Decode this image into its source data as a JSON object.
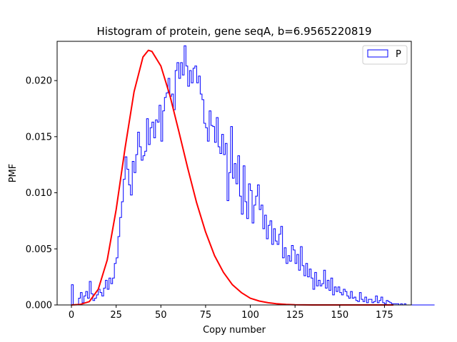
{
  "chart_data": {
    "type": "histogram",
    "title": "Histogram of protein, gene seqA, b=6.9565220819",
    "xlabel": "Copy number",
    "ylabel": "PMF",
    "xlim": [
      -8,
      190
    ],
    "ylim": [
      0,
      0.0235
    ],
    "xticks": [
      0,
      25,
      50,
      75,
      100,
      125,
      150,
      175
    ],
    "yticks": [
      0.0,
      0.005,
      0.01,
      0.015,
      0.02
    ],
    "ytick_labels": [
      "0.000",
      "0.005",
      "0.010",
      "0.015",
      "0.020"
    ],
    "grid": false,
    "legend": {
      "position": "top-right",
      "entries": [
        "P"
      ]
    },
    "histogram": {
      "name": "P",
      "color": "#0000ff",
      "bin_edges_start": 0,
      "bin_width": 1,
      "values": [
        0.0018,
        0,
        0,
        0,
        0.0006,
        0.0011,
        0.0002,
        0.0008,
        0.0012,
        0.0006,
        0.0021,
        0.001,
        0.0004,
        0.0006,
        0.0009,
        0.0014,
        0.0011,
        0.0008,
        0.0015,
        0.0022,
        0.0014,
        0.0024,
        0.0019,
        0.0024,
        0.0037,
        0.0042,
        0.0061,
        0.0078,
        0.0092,
        0.0112,
        0.0132,
        0.0121,
        0.0107,
        0.0098,
        0.0128,
        0.0118,
        0.0134,
        0.0154,
        0.0141,
        0.0129,
        0.0133,
        0.0137,
        0.0166,
        0.0143,
        0.0158,
        0.0163,
        0.0149,
        0.0165,
        0.0163,
        0.0178,
        0.0146,
        0.0173,
        0.0185,
        0.0189,
        0.0202,
        0.0186,
        0.0188,
        0.0174,
        0.0209,
        0.0216,
        0.0202,
        0.0216,
        0.0205,
        0.0231,
        0.0213,
        0.0195,
        0.0209,
        0.0198,
        0.0211,
        0.0213,
        0.0198,
        0.0204,
        0.0188,
        0.0183,
        0.0162,
        0.0158,
        0.0146,
        0.0173,
        0.016,
        0.0159,
        0.0145,
        0.0167,
        0.0141,
        0.0135,
        0.0152,
        0.0134,
        0.0144,
        0.0093,
        0.0118,
        0.0159,
        0.0113,
        0.0126,
        0.0108,
        0.0133,
        0.0097,
        0.0081,
        0.0124,
        0.0092,
        0.0077,
        0.0108,
        0.0102,
        0.0073,
        0.0089,
        0.0097,
        0.0107,
        0.0085,
        0.0089,
        0.0068,
        0.008,
        0.0059,
        0.0071,
        0.0075,
        0.0054,
        0.0068,
        0.0057,
        0.0054,
        0.0063,
        0.007,
        0.0042,
        0.0051,
        0.0037,
        0.0044,
        0.0039,
        0.0053,
        0.0049,
        0.0037,
        0.0045,
        0.0031,
        0.0052,
        0.0035,
        0.0026,
        0.0037,
        0.0025,
        0.0032,
        0.0024,
        0.0014,
        0.0029,
        0.0017,
        0.0022,
        0.0017,
        0.0019,
        0.0031,
        0.0015,
        0.0022,
        0.0013,
        0.0024,
        0.0009,
        0.0016,
        0.0012,
        0.0016,
        0.0011,
        0.0009,
        0.0014,
        0.0012,
        0.0008,
        0.0006,
        0.0012,
        0.0006,
        0.0007,
        0.0004,
        0.0003,
        0.0011,
        0.0005,
        0.0003,
        0.0007,
        0.0002,
        0.0005,
        0.0005,
        0.0002,
        0.0003,
        0.0008,
        0.0002,
        0.0004,
        0.0007,
        0.0002,
        0.0001,
        0.0004,
        0.0003,
        0.0002,
        0.0001,
        0.0001,
        0.0001,
        0.0001,
        0.0,
        0.0001,
        0.0,
        0.0001,
        0.0,
        0.0,
        0.0,
        0.0,
        0.0,
        0.0,
        0.0,
        0.0,
        0.0,
        0.0,
        0.0,
        0.0,
        0.0,
        0.0,
        0.0,
        0.0
      ]
    },
    "curve": {
      "color": "#ff0000",
      "x": [
        0,
        5,
        10,
        15,
        20,
        25,
        30,
        35,
        40,
        43,
        45,
        50,
        55,
        60,
        65,
        70,
        75,
        80,
        85,
        90,
        95,
        100,
        105,
        110,
        115,
        120,
        125,
        130,
        135,
        140,
        145,
        150,
        155,
        160,
        165,
        170,
        175,
        180
      ],
      "y": [
        0.0,
        5e-05,
        0.0003,
        0.0014,
        0.004,
        0.0085,
        0.014,
        0.019,
        0.0221,
        0.0227,
        0.0226,
        0.0213,
        0.0187,
        0.0155,
        0.0122,
        0.0091,
        0.0065,
        0.0044,
        0.0029,
        0.0018,
        0.0011,
        0.0006,
        0.00035,
        0.0002,
        0.0001,
        5e-05,
        2e-05,
        1e-05,
        0.0,
        0.0,
        0.0,
        0.0,
        0.0,
        0.0,
        0.0,
        0.0,
        0.0,
        0.0
      ]
    }
  }
}
